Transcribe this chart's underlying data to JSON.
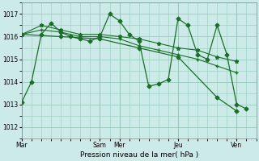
{
  "background_color": "#cceae7",
  "grid_color": "#99ccbb",
  "line_color": "#1a6e2a",
  "ylim": [
    1011.5,
    1017.5
  ],
  "yticks": [
    1012,
    1013,
    1014,
    1015,
    1016,
    1017
  ],
  "xlabel": "Pression niveau de la mer( hPa )",
  "figsize": [
    3.2,
    2.0
  ],
  "dpi": 100,
  "day_labels": [
    "Mar",
    "Sam",
    "Mer",
    "Jeu",
    "Ven"
  ],
  "day_x": [
    0,
    48,
    60,
    96,
    132
  ],
  "xlim": [
    0,
    144
  ],
  "vline_color": "#888888",
  "series": [
    {
      "x": [
        0,
        6,
        12,
        18,
        24,
        30,
        36,
        42,
        48,
        54,
        60,
        66,
        72,
        78,
        84,
        90,
        96,
        102,
        108,
        114,
        120,
        126,
        132,
        138
      ],
      "y": [
        1013.1,
        1014.0,
        1016.1,
        1016.6,
        1016.2,
        1016.0,
        1015.9,
        1015.8,
        1016.0,
        1017.0,
        1016.7,
        1016.1,
        1015.8,
        1013.8,
        1013.9,
        1014.1,
        1016.8,
        1016.5,
        1015.2,
        1015.0,
        1016.5,
        1015.2,
        1013.0,
        1012.8
      ],
      "marker": "D",
      "markersize": 2.5,
      "linewidth": 0.9
    },
    {
      "x": [
        0,
        12,
        24,
        36,
        48,
        60,
        72,
        84,
        96,
        108,
        120,
        132
      ],
      "y": [
        1016.1,
        1016.5,
        1016.3,
        1016.1,
        1016.1,
        1016.0,
        1015.9,
        1015.7,
        1015.5,
        1015.4,
        1015.1,
        1014.9
      ],
      "marker": "*",
      "markersize": 3.5,
      "linewidth": 0.8
    },
    {
      "x": [
        0,
        12,
        24,
        36,
        48,
        60,
        72,
        84,
        96,
        108,
        120,
        132
      ],
      "y": [
        1016.1,
        1016.3,
        1016.2,
        1016.0,
        1016.0,
        1015.9,
        1015.6,
        1015.4,
        1015.2,
        1015.0,
        1014.7,
        1014.4
      ],
      "marker": "+",
      "markersize": 3.0,
      "linewidth": 0.8
    },
    {
      "x": [
        0,
        24,
        48,
        72,
        96,
        120,
        132
      ],
      "y": [
        1016.1,
        1016.0,
        1015.9,
        1015.5,
        1015.1,
        1013.3,
        1012.7
      ],
      "marker": "D",
      "markersize": 2.5,
      "linewidth": 0.9
    }
  ]
}
